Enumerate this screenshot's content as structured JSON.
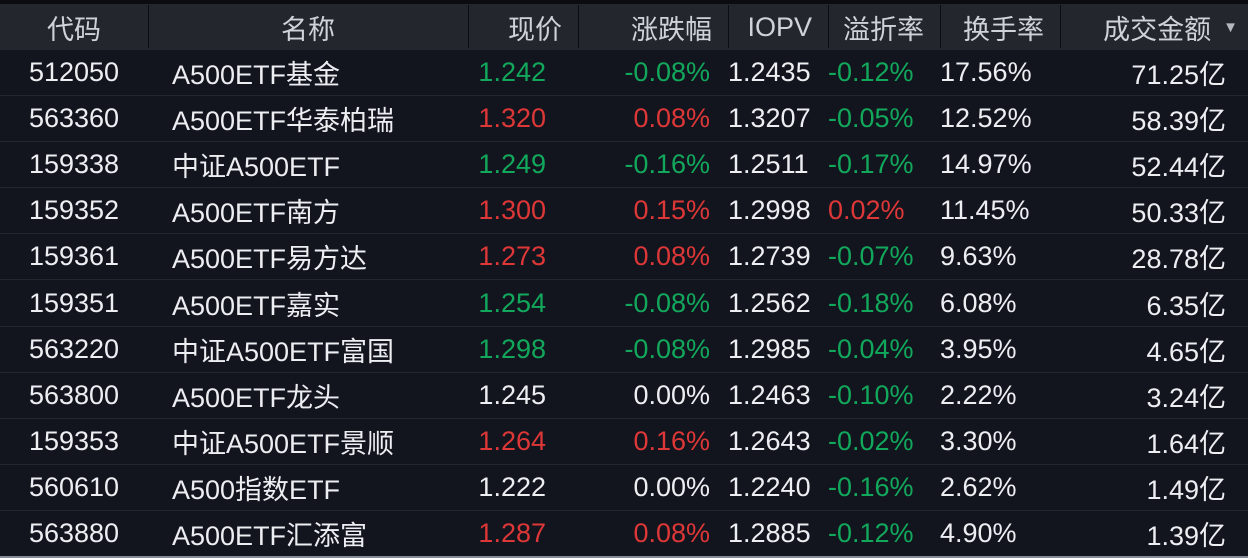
{
  "colors": {
    "up": "#dd3737",
    "down": "#12a85c",
    "neutral": "#eceef2",
    "header-bg": "#24262d",
    "row-bg": "#12151e"
  },
  "table": {
    "header": {
      "columns": [
        {
          "label": "代码"
        },
        {
          "label": "名称"
        },
        {
          "label": "现价"
        },
        {
          "label": "涨跌幅"
        },
        {
          "label": "IOPV"
        },
        {
          "label": "溢折率"
        },
        {
          "label": "换手率"
        },
        {
          "label": "成交金额"
        }
      ],
      "sort_column": "成交金额",
      "sort_order": "descending",
      "sort_icon": "▼"
    },
    "rows": [
      {
        "code": "512050",
        "name": "A500ETF基金",
        "price": "1.242",
        "price_dir": "down",
        "change": "-0.08%",
        "change_dir": "down",
        "iopv": "1.2435",
        "premium": "-0.12%",
        "premium_dir": "down",
        "turnover": "17.56%",
        "amount": "71.25亿"
      },
      {
        "code": "563360",
        "name": "A500ETF华泰柏瑞",
        "price": "1.320",
        "price_dir": "up",
        "change": "0.08%",
        "change_dir": "up",
        "iopv": "1.3207",
        "premium": "-0.05%",
        "premium_dir": "down",
        "turnover": "12.52%",
        "amount": "58.39亿"
      },
      {
        "code": "159338",
        "name": "中证A500ETF",
        "price": "1.249",
        "price_dir": "down",
        "change": "-0.16%",
        "change_dir": "down",
        "iopv": "1.2511",
        "premium": "-0.17%",
        "premium_dir": "down",
        "turnover": "14.97%",
        "amount": "52.44亿"
      },
      {
        "code": "159352",
        "name": "A500ETF南方",
        "price": "1.300",
        "price_dir": "up",
        "change": "0.15%",
        "change_dir": "up",
        "iopv": "1.2998",
        "premium": "0.02%",
        "premium_dir": "up",
        "turnover": "11.45%",
        "amount": "50.33亿"
      },
      {
        "code": "159361",
        "name": "A500ETF易方达",
        "price": "1.273",
        "price_dir": "up",
        "change": "0.08%",
        "change_dir": "up",
        "iopv": "1.2739",
        "premium": "-0.07%",
        "premium_dir": "down",
        "turnover": "9.63%",
        "amount": "28.78亿"
      },
      {
        "code": "159351",
        "name": "A500ETF嘉实",
        "price": "1.254",
        "price_dir": "down",
        "change": "-0.08%",
        "change_dir": "down",
        "iopv": "1.2562",
        "premium": "-0.18%",
        "premium_dir": "down",
        "turnover": "6.08%",
        "amount": "6.35亿"
      },
      {
        "code": "563220",
        "name": "中证A500ETF富国",
        "price": "1.298",
        "price_dir": "down",
        "change": "-0.08%",
        "change_dir": "down",
        "iopv": "1.2985",
        "premium": "-0.04%",
        "premium_dir": "down",
        "turnover": "3.95%",
        "amount": "4.65亿"
      },
      {
        "code": "563800",
        "name": "A500ETF龙头",
        "price": "1.245",
        "price_dir": "flat",
        "change": "0.00%",
        "change_dir": "flat",
        "iopv": "1.2463",
        "premium": "-0.10%",
        "premium_dir": "down",
        "turnover": "2.22%",
        "amount": "3.24亿"
      },
      {
        "code": "159353",
        "name": "中证A500ETF景顺",
        "price": "1.264",
        "price_dir": "up",
        "change": "0.16%",
        "change_dir": "up",
        "iopv": "1.2643",
        "premium": "-0.02%",
        "premium_dir": "down",
        "turnover": "3.30%",
        "amount": "1.64亿"
      },
      {
        "code": "560610",
        "name": "A500指数ETF",
        "price": "1.222",
        "price_dir": "flat",
        "change": "0.00%",
        "change_dir": "flat",
        "iopv": "1.2240",
        "premium": "-0.16%",
        "premium_dir": "down",
        "turnover": "2.62%",
        "amount": "1.49亿"
      },
      {
        "code": "563880",
        "name": "A500ETF汇添富",
        "price": "1.287",
        "price_dir": "up",
        "change": "0.08%",
        "change_dir": "up",
        "iopv": "1.2885",
        "premium": "-0.12%",
        "premium_dir": "down",
        "turnover": "4.90%",
        "amount": "1.39亿"
      }
    ]
  }
}
